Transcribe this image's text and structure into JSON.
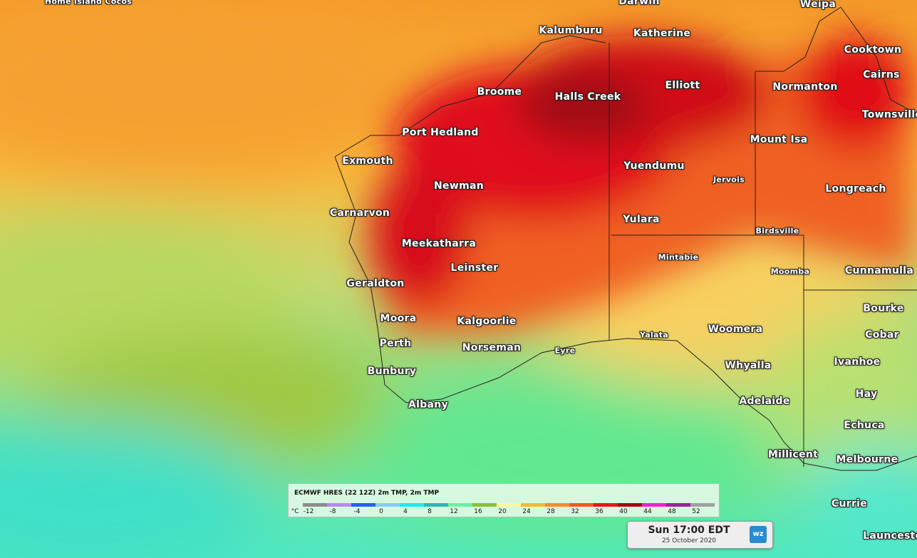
{
  "places": [
    {
      "name": "Home Island Cocos",
      "small": true
    },
    {
      "name": "Darwin"
    },
    {
      "name": "Weipa"
    },
    {
      "name": "Kalumburu"
    },
    {
      "name": "Katherine"
    },
    {
      "name": "Cooktown"
    },
    {
      "name": "Cairns"
    },
    {
      "name": "Broome"
    },
    {
      "name": "Halls Creek"
    },
    {
      "name": "Elliott"
    },
    {
      "name": "Normanton"
    },
    {
      "name": "Townsville"
    },
    {
      "name": "Port Hedland"
    },
    {
      "name": "Mount Isa"
    },
    {
      "name": "Exmouth"
    },
    {
      "name": "Yuendumu"
    },
    {
      "name": "Jervois",
      "small": true
    },
    {
      "name": "Newman"
    },
    {
      "name": "Longreach"
    },
    {
      "name": "Carnarvon"
    },
    {
      "name": "Yulara"
    },
    {
      "name": "Birdsville",
      "small": true
    },
    {
      "name": "Meekatharra"
    },
    {
      "name": "Mintabie",
      "small": true
    },
    {
      "name": "Leinster"
    },
    {
      "name": "Moomba",
      "small": true
    },
    {
      "name": "Cunnamulla"
    },
    {
      "name": "Geraldton"
    },
    {
      "name": "Bourke"
    },
    {
      "name": "Moora"
    },
    {
      "name": "Kalgoorlie"
    },
    {
      "name": "Yalata",
      "small": true
    },
    {
      "name": "Woomera"
    },
    {
      "name": "Cobar"
    },
    {
      "name": "Perth"
    },
    {
      "name": "Norseman"
    },
    {
      "name": "Eyre",
      "small": true
    },
    {
      "name": "Whyalla"
    },
    {
      "name": "Ivanhoe"
    },
    {
      "name": "Bunbury"
    },
    {
      "name": "Hay"
    },
    {
      "name": "Adelaide"
    },
    {
      "name": "Albany"
    },
    {
      "name": "Echuca"
    },
    {
      "name": "Millicent"
    },
    {
      "name": "Melbourne"
    },
    {
      "name": "Currie"
    },
    {
      "name": "Launceston"
    }
  ],
  "legend": {
    "title": "ECMWF HRES (22 12Z) 2m TMP, 2m TMP",
    "unit": "°C",
    "ticks": [
      -12,
      -8,
      -4,
      0,
      4,
      8,
      12,
      16,
      20,
      24,
      28,
      32,
      36,
      40,
      44,
      48,
      52
    ],
    "colors": [
      "#8c8c8c",
      "#b58cf0",
      "#2d5cf0",
      "#8cc8f8",
      "#1ee8f0",
      "#2ab8b4",
      "#6ef0a0",
      "#8cc030",
      "#f8f8a0",
      "#f8b830",
      "#f88c1e",
      "#f05a1e",
      "#e8141e",
      "#a00a14",
      "#f01ee0",
      "#a01ea0",
      "#a0a0a0"
    ]
  },
  "time": {
    "main": "Sun 17:00 EDT",
    "date": "25 October 2020",
    "logo": "wz"
  }
}
